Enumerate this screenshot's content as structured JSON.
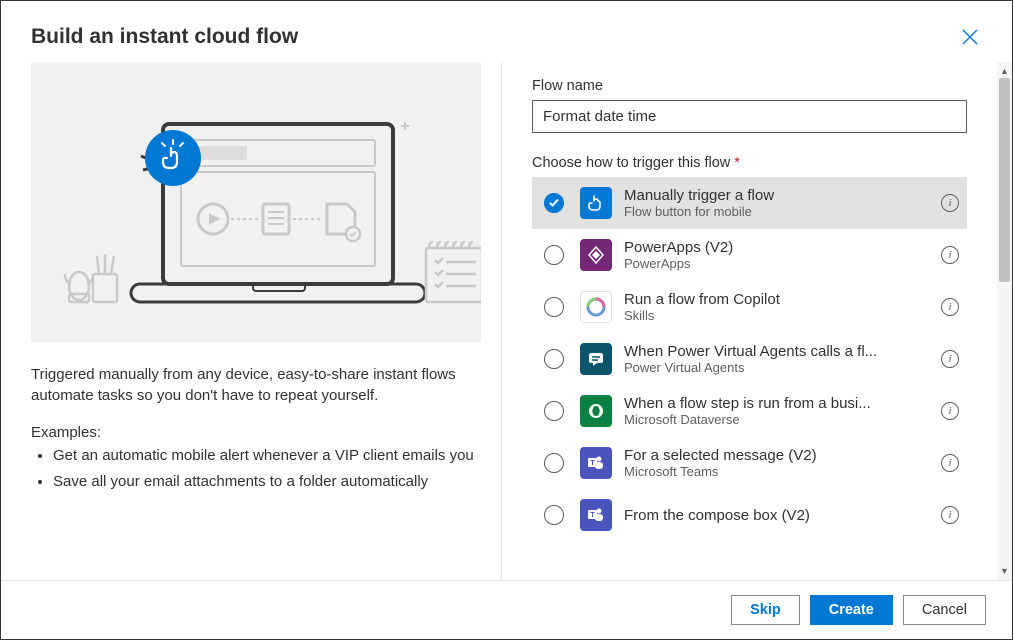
{
  "header": {
    "title": "Build an instant cloud flow"
  },
  "left": {
    "description": "Triggered manually from any device, easy-to-share instant flows automate tasks so you don't have to repeat yourself.",
    "examples_label": "Examples:",
    "examples": [
      "Get an automatic mobile alert whenever a VIP client emails you",
      "Save all your email attachments to a folder automatically"
    ]
  },
  "form": {
    "flow_name_label": "Flow name",
    "flow_name_value": "Format date time",
    "trigger_label": "Choose how to trigger this flow",
    "trigger_required": "*"
  },
  "triggers": [
    {
      "title": "Manually trigger a flow",
      "subtitle": "Flow button for mobile",
      "selected": true,
      "bg": "#0078d4",
      "icon": "manual"
    },
    {
      "title": "PowerApps (V2)",
      "subtitle": "PowerApps",
      "selected": false,
      "bg": "#742774",
      "icon": "powerapps"
    },
    {
      "title": "Run a flow from Copilot",
      "subtitle": "Skills",
      "selected": false,
      "bg": "#ffffff",
      "icon": "copilot"
    },
    {
      "title": "When Power Virtual Agents calls a fl...",
      "subtitle": "Power Virtual Agents",
      "selected": false,
      "bg": "#0b556a",
      "icon": "pva"
    },
    {
      "title": "When a flow step is run from a busi...",
      "subtitle": "Microsoft Dataverse",
      "selected": false,
      "bg": "#088142",
      "icon": "dataverse"
    },
    {
      "title": "For a selected message (V2)",
      "subtitle": "Microsoft Teams",
      "selected": false,
      "bg": "#4b53bc",
      "icon": "teams"
    },
    {
      "title": "From the compose box (V2)",
      "subtitle": "",
      "selected": false,
      "bg": "#4b53bc",
      "icon": "teams"
    }
  ],
  "footer": {
    "skip": "Skip",
    "create": "Create",
    "cancel": "Cancel"
  },
  "colors": {
    "primary": "#0078d4",
    "text": "#323130",
    "subtext": "#605e5c",
    "illus_bg": "#f1f1f1",
    "stroke": "#bdbdbd"
  }
}
